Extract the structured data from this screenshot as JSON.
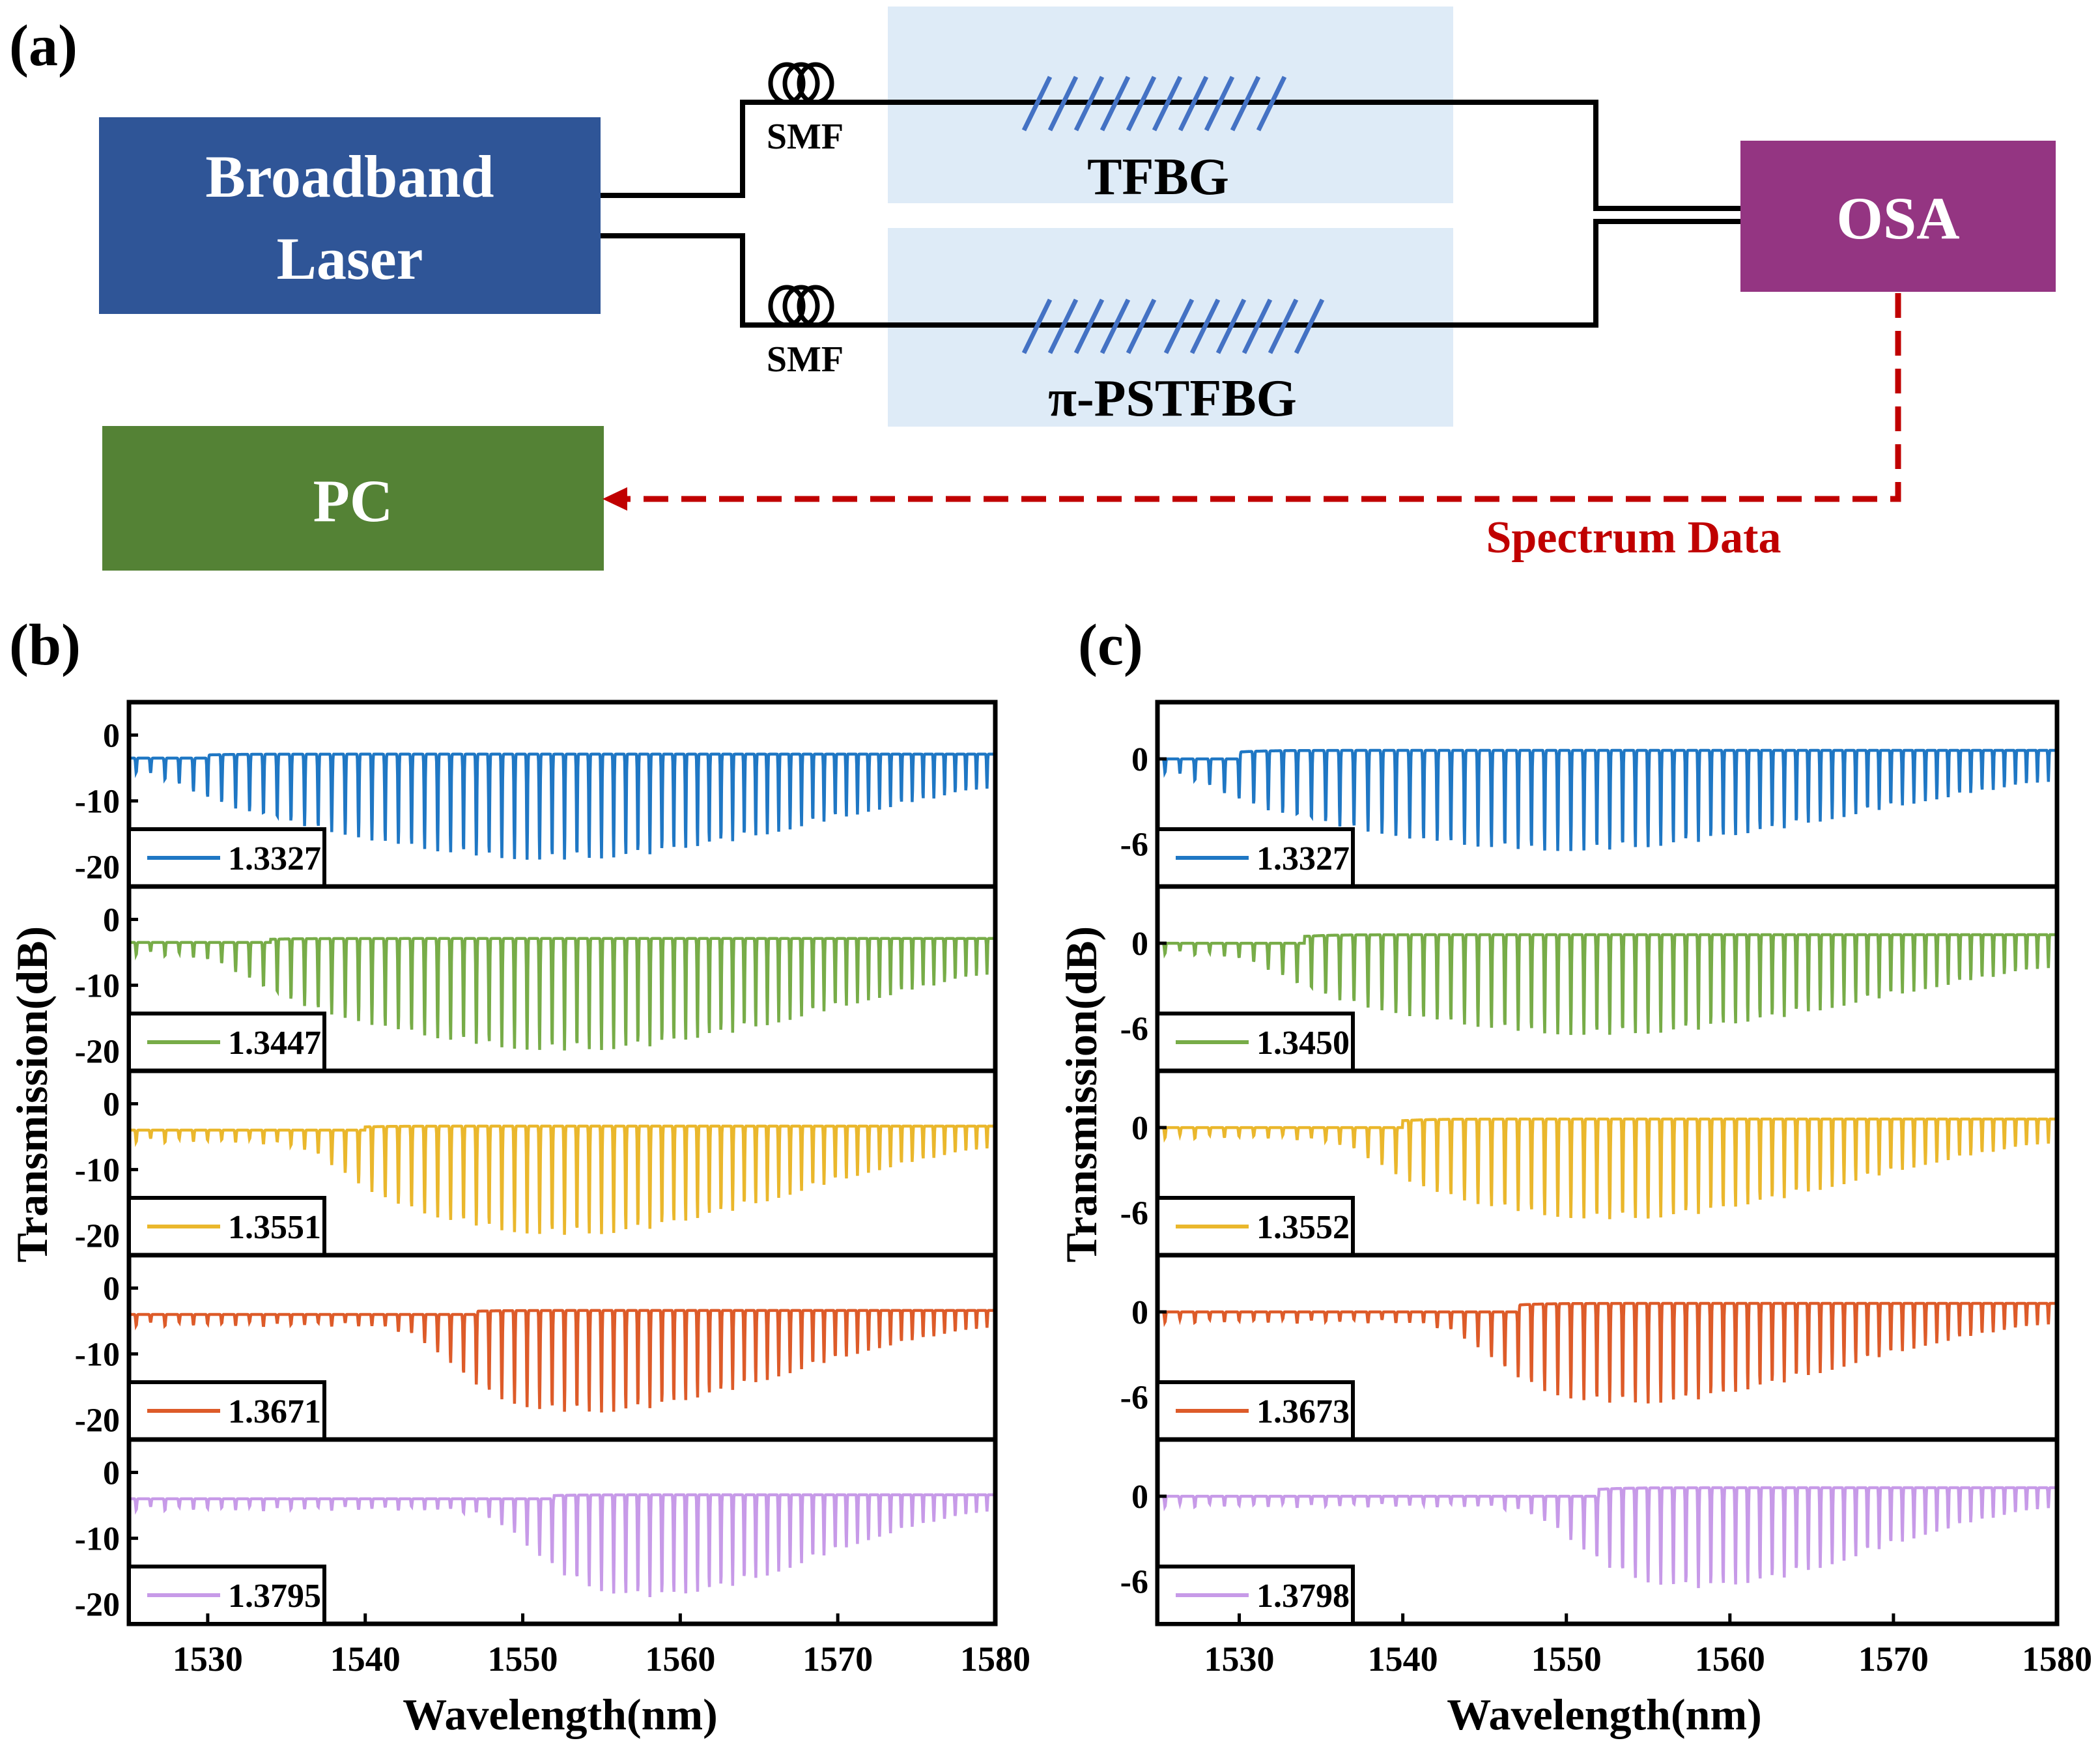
{
  "panels": {
    "a": "(a)",
    "b": "(b)",
    "c": "(c)"
  },
  "setup": {
    "laser_line1": "Broadband",
    "laser_line2": "Laser",
    "osa": "OSA",
    "pc": "PC",
    "smf_top": "SMF",
    "smf_bottom": "SMF",
    "tfbg": "TFBG",
    "pstfbg": "π-PSTFBG",
    "spectrum_data": "Spectrum Data",
    "colors": {
      "laser": "#2f5597",
      "osa": "#943582",
      "pc": "#548235",
      "fbg_box": "#deebf7",
      "grating": "#4472c4",
      "signal": "#c00000"
    }
  },
  "chart_data": [
    {
      "type": "line",
      "panel": "(b)",
      "title": "",
      "xlabel": "Wavelength(nm)",
      "ylabel": "Transmission(dB)",
      "xlim": [
        1525,
        1580
      ],
      "xticks": [
        "1530",
        "1540",
        "1550",
        "1560",
        "1570",
        "1580"
      ],
      "ylim": [
        -23,
        5
      ],
      "yticks": [
        "0",
        "-10",
        "-20"
      ],
      "ytick_values": [
        0,
        -10,
        -20
      ],
      "series": [
        {
          "name": "1.3327",
          "color": "#1f77c4",
          "baseline": -3.5,
          "depth": 15.5,
          "onset": 1528,
          "center": 1552,
          "width": 25
        },
        {
          "name": "1.3447",
          "color": "#77ac48",
          "baseline": -3.5,
          "depth": 16.5,
          "onset": 1532,
          "center": 1553,
          "width": 24
        },
        {
          "name": "1.3551",
          "color": "#eab72c",
          "baseline": -4,
          "depth": 16,
          "onset": 1538,
          "center": 1553,
          "width": 20
        },
        {
          "name": "1.3671",
          "color": "#dd5b29",
          "baseline": -4,
          "depth": 15,
          "onset": 1545,
          "center": 1554,
          "width": 18
        },
        {
          "name": "1.3795",
          "color": "#c79ae8",
          "baseline": -4,
          "depth": 15,
          "onset": 1550,
          "center": 1558,
          "width": 15
        }
      ]
    },
    {
      "type": "line",
      "panel": "(c)",
      "title": "",
      "xlabel": "Wavelength(nm)",
      "ylabel": "Transmission(dB)",
      "xlim": [
        1525,
        1580
      ],
      "xticks": [
        "1530",
        "1540",
        "1550",
        "1560",
        "1570",
        "1580"
      ],
      "ylim": [
        -9,
        4
      ],
      "yticks": [
        "0",
        "-6"
      ],
      "ytick_values": [
        0,
        -6
      ],
      "series": [
        {
          "name": "1.3327",
          "color": "#1f77c4",
          "baseline": 0,
          "depth": 6.5,
          "onset": 1528,
          "center": 1550,
          "width": 25
        },
        {
          "name": "1.3450",
          "color": "#77ac48",
          "baseline": 0,
          "depth": 6.5,
          "onset": 1532,
          "center": 1552,
          "width": 24
        },
        {
          "name": "1.3552",
          "color": "#eab72c",
          "baseline": 0,
          "depth": 6.5,
          "onset": 1538,
          "center": 1553,
          "width": 20
        },
        {
          "name": "1.3673",
          "color": "#dd5b29",
          "baseline": 0,
          "depth": 6.5,
          "onset": 1545,
          "center": 1554,
          "width": 18
        },
        {
          "name": "1.3798",
          "color": "#c79ae8",
          "baseline": 0,
          "depth": 6.5,
          "onset": 1550,
          "center": 1558,
          "width": 15
        }
      ]
    }
  ]
}
